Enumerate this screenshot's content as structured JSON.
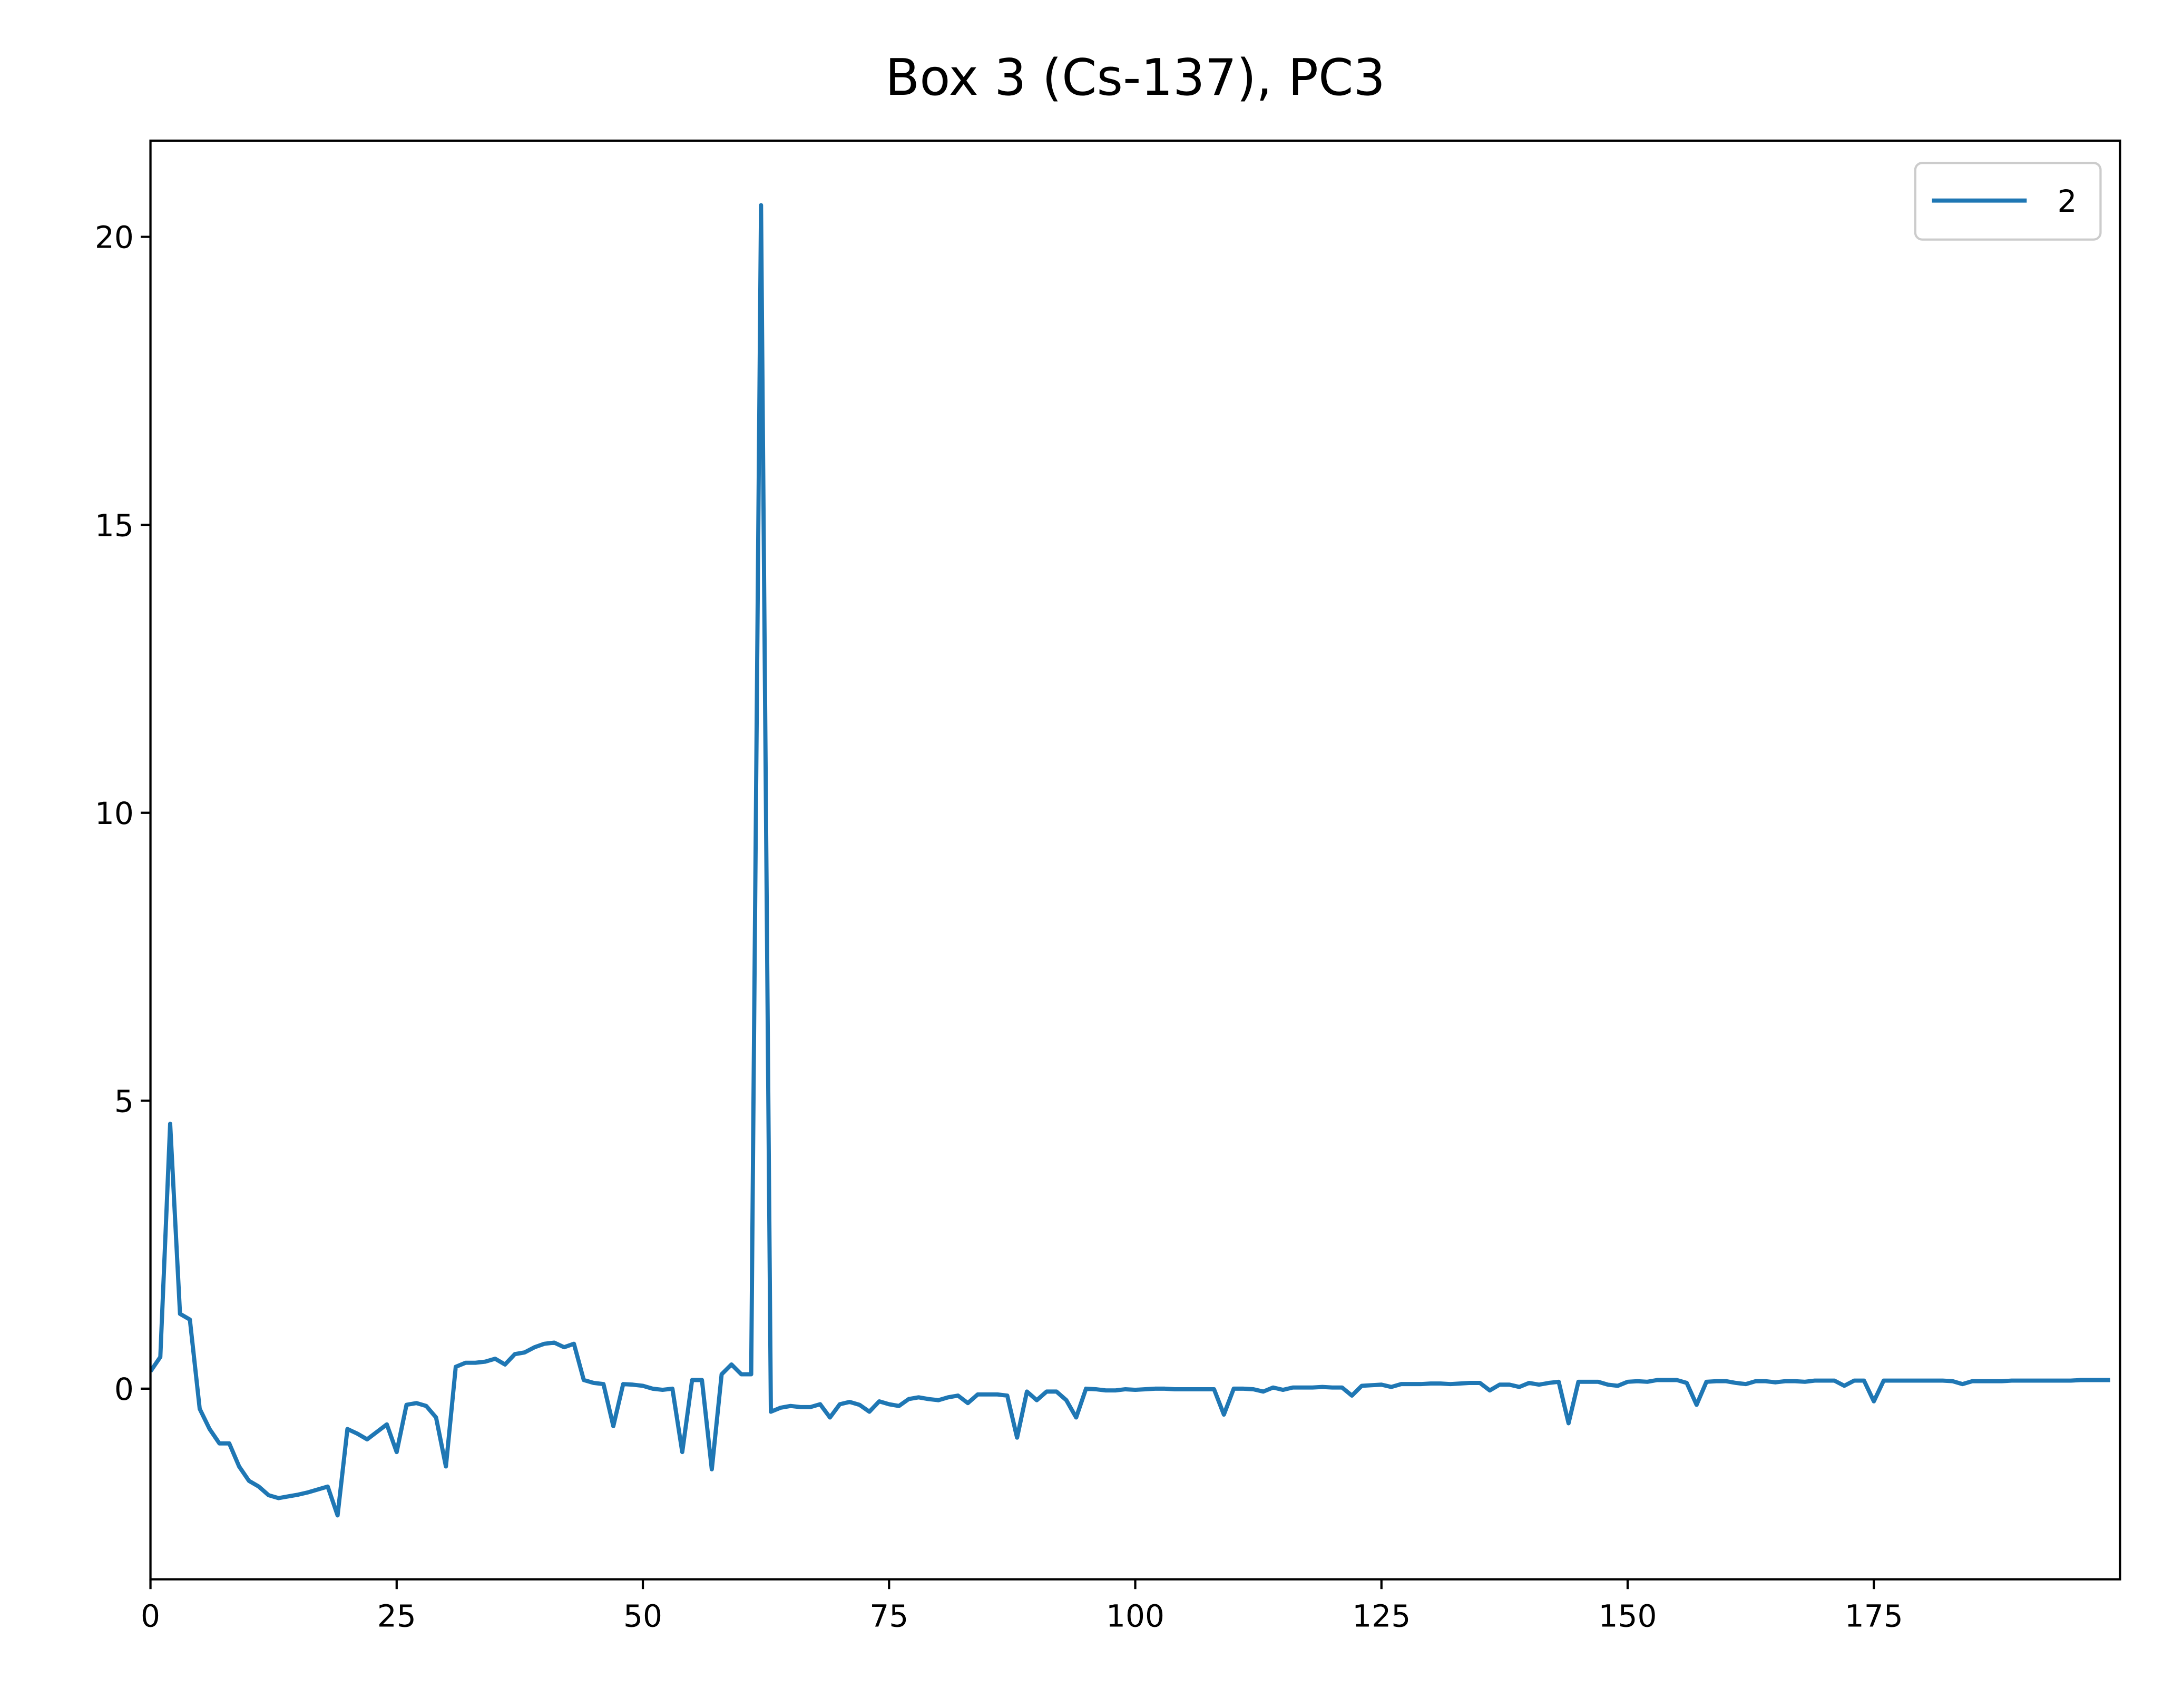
{
  "chart_data": {
    "type": "line",
    "title": "Box 3 (Cs-137), PC3",
    "x": [
      0,
      1,
      2,
      3,
      4,
      5,
      6,
      7,
      8,
      9,
      10,
      11,
      12,
      13,
      14,
      15,
      16,
      17,
      18,
      19,
      20,
      21,
      22,
      23,
      24,
      25,
      26,
      27,
      28,
      29,
      30,
      31,
      32,
      33,
      34,
      35,
      36,
      37,
      38,
      39,
      40,
      41,
      42,
      43,
      44,
      45,
      46,
      47,
      48,
      49,
      50,
      51,
      52,
      53,
      54,
      55,
      56,
      57,
      58,
      59,
      60,
      61,
      62,
      63,
      64,
      65,
      66,
      67,
      68,
      69,
      70,
      71,
      72,
      73,
      74,
      75,
      76,
      77,
      78,
      79,
      80,
      81,
      82,
      83,
      84,
      85,
      86,
      87,
      88,
      89,
      90,
      91,
      92,
      93,
      94,
      95,
      96,
      97,
      98,
      99,
      100,
      101,
      102,
      103,
      104,
      105,
      106,
      107,
      108,
      109,
      110,
      111,
      112,
      113,
      114,
      115,
      116,
      117,
      118,
      119,
      120,
      121,
      122,
      123,
      124,
      125,
      126,
      127,
      128,
      129,
      130,
      131,
      132,
      133,
      134,
      135,
      136,
      137,
      138,
      139,
      140,
      141,
      142,
      143,
      144,
      145,
      146,
      147,
      148,
      149,
      150,
      151,
      152,
      153,
      154,
      155,
      156,
      157,
      158,
      159,
      160,
      161,
      162,
      163,
      164,
      165,
      166,
      167,
      168,
      169,
      170,
      171,
      172,
      173,
      174,
      175,
      176,
      177,
      178,
      179,
      180,
      181,
      182,
      183,
      184,
      185,
      186,
      187,
      188,
      189,
      190,
      191,
      192,
      193,
      194,
      195,
      196,
      197,
      198,
      199
    ],
    "series": [
      {
        "name": "2",
        "color": "#1f77b4",
        "values": [
          0.3,
          0.55,
          4.6,
          1.3,
          1.2,
          -0.35,
          -0.7,
          -0.95,
          -0.95,
          -1.35,
          -1.6,
          -1.7,
          -1.85,
          -1.9,
          -1.87,
          -1.84,
          -1.8,
          -1.75,
          -1.7,
          -2.2,
          -0.7,
          -0.78,
          -0.88,
          -0.75,
          -0.62,
          -1.1,
          -0.28,
          -0.25,
          -0.3,
          -0.5,
          -1.35,
          0.38,
          0.45,
          0.45,
          0.47,
          0.52,
          0.42,
          0.6,
          0.63,
          0.72,
          0.78,
          0.8,
          0.72,
          0.78,
          0.15,
          0.1,
          0.08,
          -0.65,
          0.08,
          0.07,
          0.05,
          0.0,
          -0.02,
          0.0,
          -1.1,
          0.15,
          0.15,
          -1.4,
          0.25,
          0.42,
          0.25,
          0.25,
          20.55,
          -0.4,
          -0.33,
          -0.3,
          -0.32,
          -0.32,
          -0.27,
          -0.5,
          -0.27,
          -0.23,
          -0.28,
          -0.4,
          -0.22,
          -0.27,
          -0.3,
          -0.18,
          -0.15,
          -0.18,
          -0.2,
          -0.15,
          -0.12,
          -0.25,
          -0.1,
          -0.1,
          -0.1,
          -0.12,
          -0.85,
          -0.05,
          -0.2,
          -0.05,
          -0.05,
          -0.2,
          -0.5,
          0.0,
          -0.01,
          -0.03,
          -0.03,
          -0.01,
          -0.02,
          -0.01,
          0.0,
          0.0,
          -0.01,
          -0.01,
          -0.01,
          -0.01,
          -0.01,
          -0.45,
          0.0,
          0.0,
          -0.01,
          -0.05,
          0.02,
          -0.02,
          0.02,
          0.02,
          0.02,
          0.03,
          0.02,
          0.02,
          -0.12,
          0.05,
          0.06,
          0.07,
          0.03,
          0.08,
          0.08,
          0.08,
          0.09,
          0.09,
          0.08,
          0.09,
          0.1,
          0.1,
          -0.03,
          0.07,
          0.07,
          0.03,
          0.1,
          0.07,
          0.1,
          0.12,
          -0.6,
          0.12,
          0.12,
          0.12,
          0.07,
          0.05,
          0.12,
          0.13,
          0.12,
          0.15,
          0.15,
          0.15,
          0.1,
          -0.28,
          0.12,
          0.13,
          0.13,
          0.1,
          0.08,
          0.13,
          0.13,
          0.11,
          0.13,
          0.13,
          0.12,
          0.14,
          0.14,
          0.14,
          0.05,
          0.14,
          0.14,
          -0.22,
          0.14,
          0.14,
          0.14,
          0.14,
          0.14,
          0.14,
          0.14,
          0.13,
          0.08,
          0.13,
          0.13,
          0.13,
          0.13,
          0.14,
          0.14,
          0.14,
          0.14,
          0.14,
          0.14,
          0.14,
          0.15,
          0.15,
          0.15,
          0.15
        ]
      }
    ],
    "xlim": [
      0,
      200
    ],
    "xticks": [
      0,
      25,
      50,
      75,
      100,
      125,
      150,
      175
    ],
    "ylim": [
      -3.31,
      21.67
    ],
    "yticks": [
      0,
      5,
      10,
      15,
      20
    ],
    "legend": "upper right"
  }
}
